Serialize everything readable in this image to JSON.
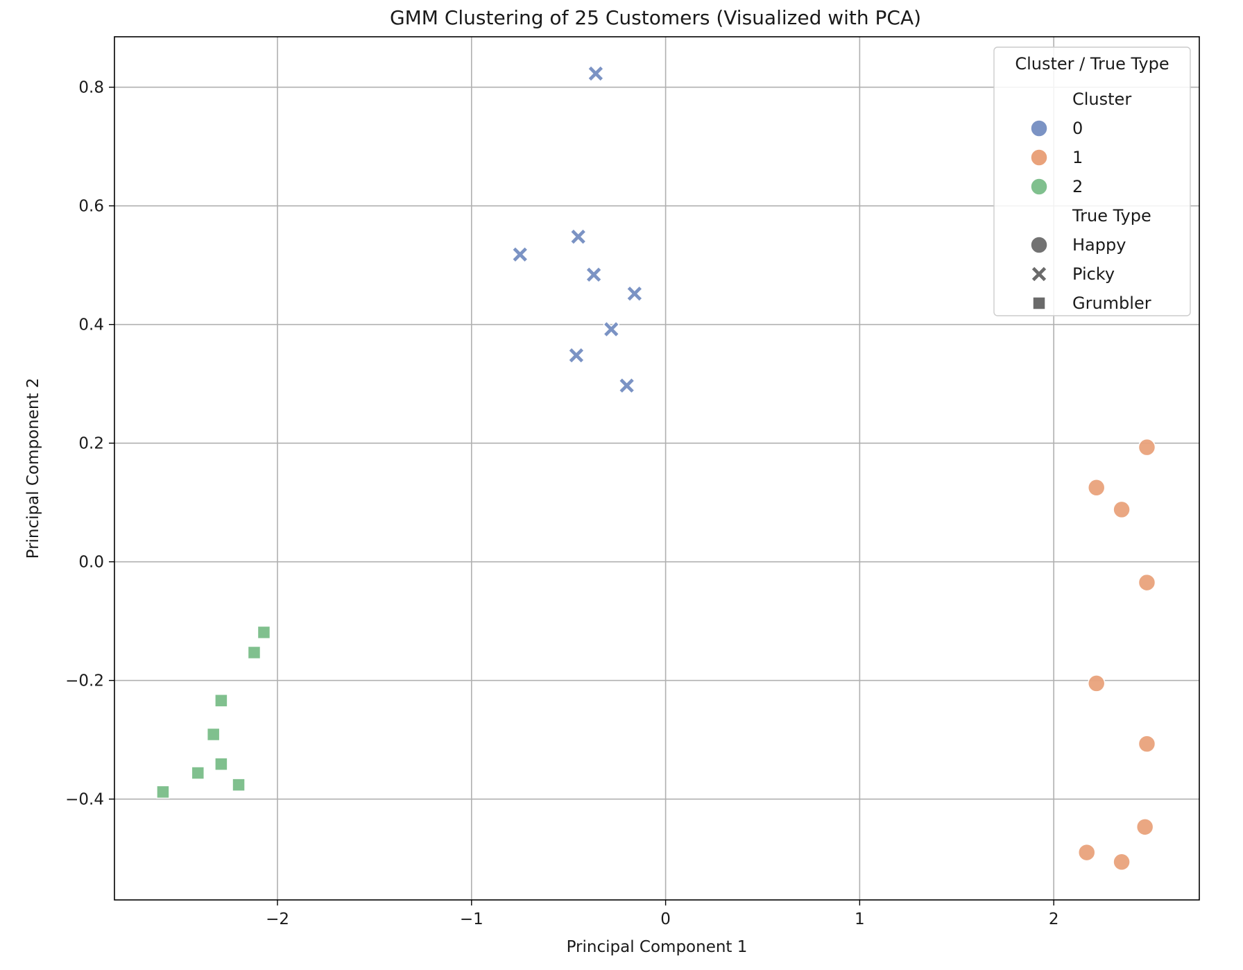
{
  "chart_data": {
    "type": "scatter",
    "title": "GMM Clustering of 25 Customers (Visualized with PCA)",
    "xlabel": "Principal Component 1",
    "ylabel": "Principal Component 2",
    "xlim": [
      -2.84,
      2.75
    ],
    "ylim": [
      -0.57,
      0.885
    ],
    "xticks": [
      -2,
      -1,
      0,
      1,
      2
    ],
    "xtick_labels": [
      "−2",
      "−1",
      "0",
      "1",
      "2"
    ],
    "yticks": [
      -0.4,
      -0.2,
      0.0,
      0.2,
      0.4,
      0.6,
      0.8
    ],
    "ytick_labels": [
      "−0.4",
      "−0.2",
      "0.0",
      "0.2",
      "0.4",
      "0.6",
      "0.8"
    ],
    "grid": true,
    "legend": {
      "title": "Cluster / True Type",
      "placement": "top-right",
      "hue_heading": "Cluster",
      "hue_items": [
        {
          "label": "0",
          "color": "#7b93c4"
        },
        {
          "label": "1",
          "color": "#e9a27b"
        },
        {
          "label": "2",
          "color": "#80c08e"
        }
      ],
      "style_heading": "True Type",
      "style_items": [
        {
          "label": "Happy",
          "marker": "circle"
        },
        {
          "label": "Picky",
          "marker": "x"
        },
        {
          "label": "Grumbler",
          "marker": "square"
        }
      ]
    },
    "series": [
      {
        "cluster": "0",
        "true_type": "Picky",
        "marker": "x",
        "color": "#7b93c4",
        "points": [
          {
            "x": -0.36,
            "y": 0.823
          },
          {
            "x": -0.45,
            "y": 0.548
          },
          {
            "x": -0.75,
            "y": 0.518
          },
          {
            "x": -0.37,
            "y": 0.484
          },
          {
            "x": -0.16,
            "y": 0.452
          },
          {
            "x": -0.28,
            "y": 0.392
          },
          {
            "x": -0.46,
            "y": 0.348
          },
          {
            "x": -0.2,
            "y": 0.297
          }
        ]
      },
      {
        "cluster": "1",
        "true_type": "Happy",
        "marker": "circle",
        "color": "#e9a27b",
        "points": [
          {
            "x": 2.48,
            "y": 0.193
          },
          {
            "x": 2.22,
            "y": 0.125
          },
          {
            "x": 2.35,
            "y": 0.088
          },
          {
            "x": 2.48,
            "y": -0.035
          },
          {
            "x": 2.22,
            "y": -0.205
          },
          {
            "x": 2.48,
            "y": -0.307
          },
          {
            "x": 2.47,
            "y": -0.447
          },
          {
            "x": 2.17,
            "y": -0.49
          },
          {
            "x": 2.35,
            "y": -0.506
          }
        ]
      },
      {
        "cluster": "2",
        "true_type": "Grumbler",
        "marker": "square",
        "color": "#80c08e",
        "points": [
          {
            "x": -2.07,
            "y": -0.119
          },
          {
            "x": -2.12,
            "y": -0.153
          },
          {
            "x": -2.29,
            "y": -0.234
          },
          {
            "x": -2.33,
            "y": -0.291
          },
          {
            "x": -2.29,
            "y": -0.341
          },
          {
            "x": -2.41,
            "y": -0.356
          },
          {
            "x": -2.2,
            "y": -0.376
          },
          {
            "x": -2.59,
            "y": -0.388
          }
        ]
      }
    ]
  }
}
